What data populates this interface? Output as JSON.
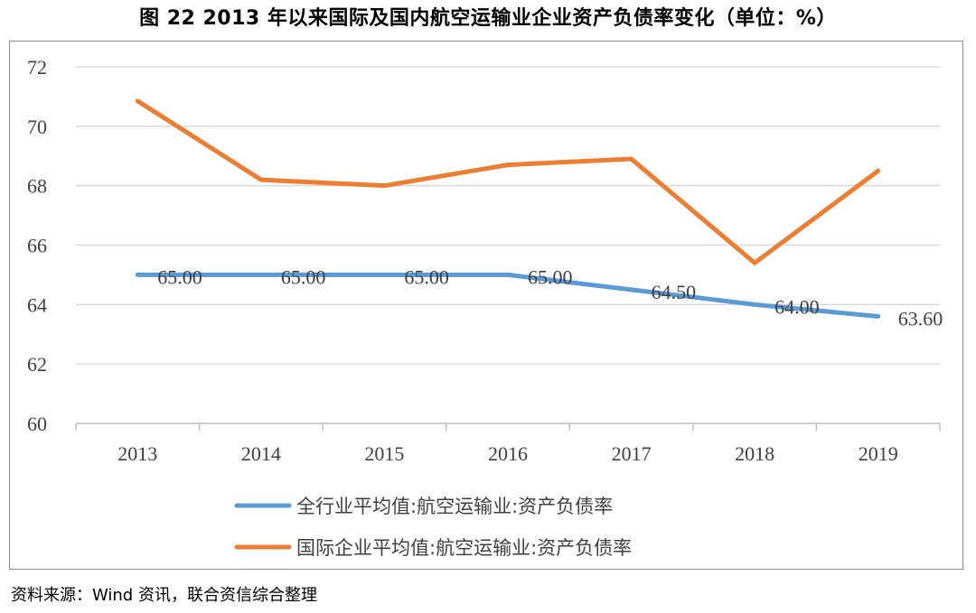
{
  "figure": {
    "title": "图 22    2013 年以来国际及国内航空运输业企业资产负债率变化（单位：%）",
    "source": "资料来源：Wind 资讯，联合资信综合整理"
  },
  "chart_data": {
    "type": "line",
    "categories": [
      "2013",
      "2014",
      "2015",
      "2016",
      "2017",
      "2018",
      "2019"
    ],
    "ylim": [
      60,
      72
    ],
    "yticks": [
      "60",
      "62",
      "64",
      "66",
      "68",
      "70",
      "72"
    ],
    "grid": true,
    "series": [
      {
        "name": "全行业平均值:航空运输业:资产负债率",
        "color": "#5b9bd5",
        "values": [
          65.0,
          65.0,
          65.0,
          65.0,
          64.5,
          64.0,
          63.6
        ],
        "labels": [
          "65.00",
          "65.00",
          "65.00",
          "65.00",
          "64.50",
          "64.00",
          "63.60"
        ]
      },
      {
        "name": "国际企业平均值:航空运输业:资产负债率",
        "color": "#ed7d31",
        "values": [
          70.85,
          68.2,
          68.0,
          68.7,
          68.9,
          65.4,
          68.5
        ],
        "labels": []
      }
    ],
    "legend_position": "bottom"
  }
}
